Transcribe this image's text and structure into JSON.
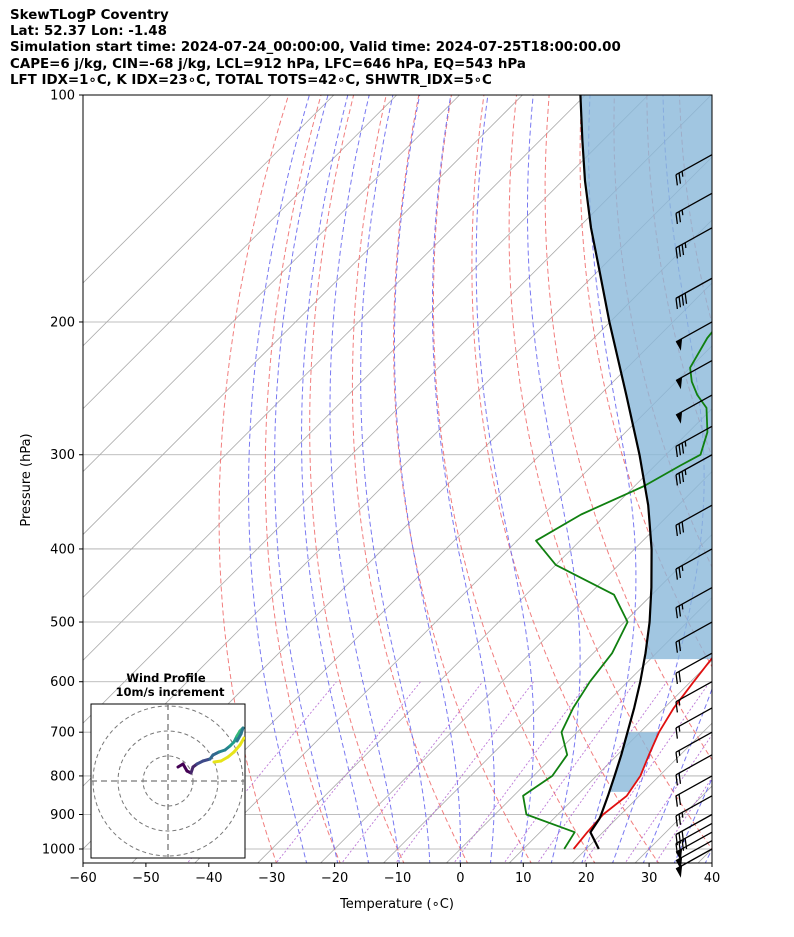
{
  "header": {
    "line1": "SkewTLogP Coventry",
    "line2": "Lat: 52.37   Lon: -1.48",
    "line3": "Simulation start time: 2024-07-24_00:00:00, Valid time: 2024-07-25T18:00:00.00",
    "line4": "CAPE=6 j/kg, CIN=-68 j/kg, LCL=912 hPa, LFC=646 hPa, EQ=543 hPa",
    "line5": "LFT IDX=1∘C, K IDX=23∘C, TOTAL TOTS=42∘C, SHWTR_IDX=5∘C"
  },
  "chart_data": {
    "type": "line",
    "xlabel": "Temperature (∘C)",
    "ylabel": "Pressure (hPa)",
    "xlim": [
      -60,
      40
    ],
    "ylim": [
      1050,
      100
    ],
    "y_scale": "log",
    "x_ticks": [
      "−60",
      "−50",
      "−40",
      "−30",
      "−20",
      "−10",
      "0",
      "10",
      "20",
      "30",
      "40"
    ],
    "x_tick_values": [
      -60,
      -50,
      -40,
      -30,
      -20,
      -10,
      0,
      10,
      20,
      30,
      40
    ],
    "y_ticks": [
      "1000",
      "900",
      "800",
      "700",
      "600",
      "500",
      "400",
      "300",
      "200",
      "100"
    ],
    "y_tick_values": [
      1000,
      900,
      800,
      700,
      600,
      500,
      400,
      300,
      200,
      100
    ],
    "colors": {
      "temperature": "#e01010",
      "dewpoint": "#108010",
      "parcel": "#000000",
      "cape_fill": "#8ab8d9",
      "dry_adiabat": "#f07070",
      "moist_adiabat": "#6a6af0",
      "mixing_ratio": "#b060d0",
      "isotherm": "#aaaaaa"
    },
    "series": [
      {
        "key": "temperature",
        "points": [
          [
            1000,
            18.0
          ],
          [
            950,
            17.5
          ],
          [
            900,
            17.2
          ],
          [
            850,
            18.0
          ],
          [
            800,
            17.0
          ],
          [
            750,
            15.0
          ],
          [
            700,
            13.0
          ],
          [
            650,
            11.5
          ],
          [
            600,
            10.5
          ],
          [
            550,
            9.5
          ],
          [
            500,
            9.0
          ],
          [
            450,
            7.5
          ],
          [
            400,
            5.0
          ],
          [
            350,
            1.5
          ],
          [
            300,
            -3.5
          ],
          [
            280,
            -6.5
          ],
          [
            260,
            -9.0
          ],
          [
            240,
            -11.5
          ],
          [
            220,
            -14.0
          ],
          [
            210,
            -15.5
          ],
          [
            200,
            -17.0
          ],
          [
            190,
            -18.5
          ],
          [
            180,
            -17.0
          ],
          [
            170,
            -14.0
          ],
          [
            160,
            -10.0
          ],
          [
            150,
            -6.0
          ],
          [
            140,
            -3.0
          ],
          [
            130,
            -1.0
          ],
          [
            120,
            1.0
          ],
          [
            110,
            4.0
          ],
          [
            100,
            7.0
          ]
        ]
      },
      {
        "key": "dewpoint",
        "points": [
          [
            1000,
            16.5
          ],
          [
            950,
            15.5
          ],
          [
            900,
            5.0
          ],
          [
            850,
            1.5
          ],
          [
            800,
            3.0
          ],
          [
            750,
            2.0
          ],
          [
            700,
            -2.5
          ],
          [
            650,
            -4.5
          ],
          [
            600,
            -6.0
          ],
          [
            550,
            -7.0
          ],
          [
            500,
            -9.5
          ],
          [
            460,
            -16.0
          ],
          [
            420,
            -30.0
          ],
          [
            390,
            -37.0
          ],
          [
            360,
            -34.0
          ],
          [
            330,
            -28.5
          ],
          [
            310,
            -26.0
          ],
          [
            300,
            -24.5
          ],
          [
            280,
            -27.0
          ],
          [
            260,
            -31.0
          ],
          [
            250,
            -34.5
          ],
          [
            240,
            -37.5
          ],
          [
            230,
            -40.0
          ],
          [
            210,
            -42.0
          ],
          [
            190,
            -43.0
          ],
          [
            180,
            -44.5
          ],
          [
            170,
            -48.0
          ],
          [
            160,
            -54.0
          ],
          [
            150,
            -58.5
          ],
          [
            140,
            -60.0
          ],
          [
            130,
            -60.0
          ],
          [
            120,
            -60.5
          ],
          [
            110,
            -62.0
          ],
          [
            100,
            -64.0
          ]
        ]
      },
      {
        "key": "parcel",
        "points": [
          [
            1000,
            22.0
          ],
          [
            950,
            18.0
          ],
          [
            912,
            17.3
          ],
          [
            900,
            16.9
          ],
          [
            850,
            15.0
          ],
          [
            800,
            12.9
          ],
          [
            750,
            10.6
          ],
          [
            700,
            8.0
          ],
          [
            650,
            5.2
          ],
          [
            600,
            2.0
          ],
          [
            550,
            -1.7
          ],
          [
            500,
            -6.0
          ],
          [
            450,
            -11.2
          ],
          [
            400,
            -17.3
          ],
          [
            350,
            -24.8
          ],
          [
            300,
            -34.2
          ],
          [
            250,
            -45.8
          ],
          [
            200,
            -60.1
          ],
          [
            170,
            -70.2
          ],
          [
            150,
            -78.0
          ],
          [
            130,
            -86.4
          ],
          [
            115,
            -93.2
          ],
          [
            100,
            -100.8
          ]
        ]
      }
    ],
    "wind_barbs_kt": [
      [
        1000,
        50
      ],
      [
        975,
        50
      ],
      [
        950,
        50
      ],
      [
        925,
        40
      ],
      [
        900,
        30
      ],
      [
        850,
        25
      ],
      [
        800,
        20
      ],
      [
        750,
        20
      ],
      [
        700,
        15
      ],
      [
        650,
        15
      ],
      [
        600,
        15
      ],
      [
        550,
        20
      ],
      [
        500,
        20
      ],
      [
        450,
        25
      ],
      [
        400,
        25
      ],
      [
        350,
        30
      ],
      [
        300,
        35
      ],
      [
        275,
        35
      ],
      [
        250,
        50
      ],
      [
        225,
        50
      ],
      [
        200,
        50
      ],
      [
        175,
        40
      ],
      [
        150,
        35
      ],
      [
        135,
        25
      ],
      [
        120,
        25
      ]
    ],
    "hodograph": {
      "title_line1": "Wind Profile",
      "title_line2": "10m/s increment"
    }
  }
}
